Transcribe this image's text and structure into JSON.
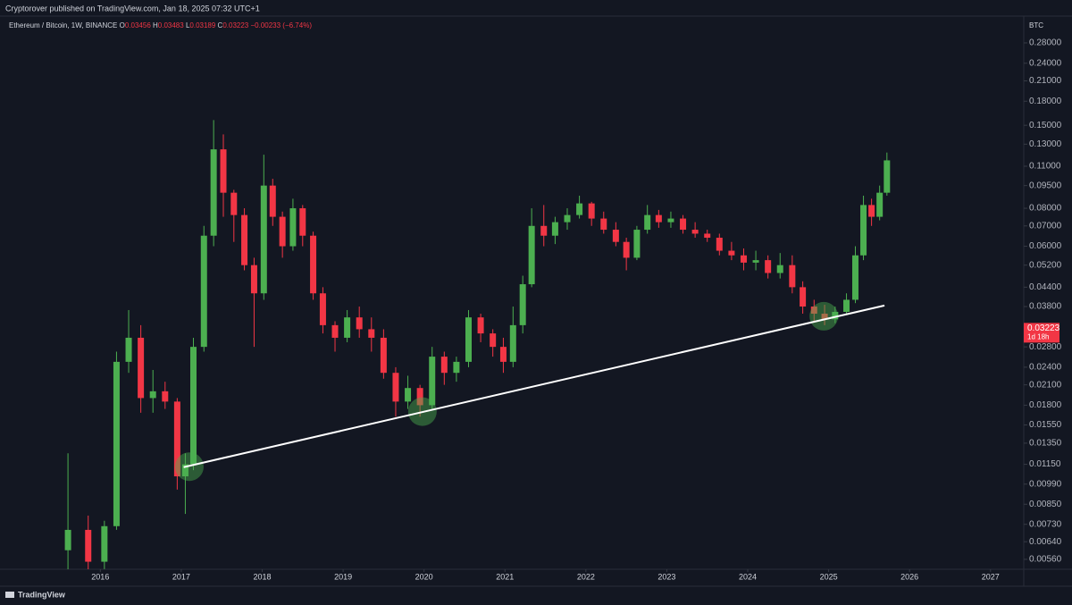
{
  "header": "Cryptorover published on TradingView.com, Jan 18, 2025 07:32 UTC+1",
  "brand": "TradingView",
  "chart_data": {
    "type": "candlestick",
    "symbol": "Ethereum / Bitcoin, 1W, BINANCE",
    "ohlc_legend": [
      {
        "key": "O",
        "text": "0.03456"
      },
      {
        "key": "H",
        "text": "0.03483"
      },
      {
        "key": "L",
        "text": "0.03189"
      },
      {
        "key": "C",
        "text": "0.03223"
      }
    ],
    "change": "−0.00233 (−6.74%)",
    "currency": "BTC",
    "last_price": 0.03223,
    "countdown": "1d 18h",
    "log_scale": true,
    "up_color": "#4caf50",
    "down_color": "#f23645",
    "xlim": [
      2014.76,
      2027.4
    ],
    "xticks": [
      2016,
      2017,
      2018,
      2019,
      2020,
      2021,
      2022,
      2023,
      2024,
      2025,
      2026,
      2027
    ],
    "ylim": [
      0.00523,
      0.343
    ],
    "yticks": [
      {
        "value": 0.28,
        "label": "0.28000"
      },
      {
        "value": 0.24,
        "label": "0.24000"
      },
      {
        "value": 0.21,
        "label": "0.21000"
      },
      {
        "value": 0.18,
        "label": "0.18000"
      },
      {
        "value": 0.15,
        "label": "0.15000"
      },
      {
        "value": 0.13,
        "label": "0.13000"
      },
      {
        "value": 0.11,
        "label": "0.11000"
      },
      {
        "value": 0.095,
        "label": "0.09500"
      },
      {
        "value": 0.08,
        "label": "0.08000"
      },
      {
        "value": 0.07,
        "label": "0.07000"
      },
      {
        "value": 0.06,
        "label": "0.06000"
      },
      {
        "value": 0.052,
        "label": "0.05200"
      },
      {
        "value": 0.044,
        "label": "0.04400"
      },
      {
        "value": 0.038,
        "label": "0.03800"
      },
      {
        "value": 0.028,
        "label": "0.02800"
      },
      {
        "value": 0.024,
        "label": "0.02400"
      },
      {
        "value": 0.021,
        "label": "0.02100"
      },
      {
        "value": 0.018,
        "label": "0.01800"
      },
      {
        "value": 0.0155,
        "label": "0.01550"
      },
      {
        "value": 0.0135,
        "label": "0.01350"
      },
      {
        "value": 0.0115,
        "label": "0.01150"
      },
      {
        "value": 0.0099,
        "label": "0.00990"
      },
      {
        "value": 0.0085,
        "label": "0.00850"
      },
      {
        "value": 0.0073,
        "label": "0.00730"
      },
      {
        "value": 0.0064,
        "label": "0.00640"
      },
      {
        "value": 0.0056,
        "label": "0.00560"
      }
    ],
    "x": [
      2015.6,
      2015.85,
      2016.05,
      2016.2,
      2016.35,
      2016.5,
      2016.65,
      2016.8,
      2016.95,
      2017.05,
      2017.15,
      2017.28,
      2017.4,
      2017.52,
      2017.65,
      2017.78,
      2017.9,
      2018.02,
      2018.13,
      2018.25,
      2018.38,
      2018.5,
      2018.63,
      2018.75,
      2018.9,
      2019.05,
      2019.2,
      2019.35,
      2019.5,
      2019.65,
      2019.8,
      2019.95,
      2020.1,
      2020.25,
      2020.4,
      2020.55,
      2020.7,
      2020.85,
      2020.98,
      2021.1,
      2021.22,
      2021.33,
      2021.48,
      2021.62,
      2021.77,
      2021.92,
      2022.07,
      2022.22,
      2022.37,
      2022.5,
      2022.63,
      2022.76,
      2022.9,
      2023.05,
      2023.2,
      2023.35,
      2023.5,
      2023.65,
      2023.8,
      2023.95,
      2024.1,
      2024.25,
      2024.4,
      2024.55,
      2024.68,
      2024.82,
      2024.95,
      2025.08,
      2025.22,
      2025.33,
      2025.43,
      2025.53,
      2025.63,
      2025.72
    ],
    "open": [
      0.006,
      0.007,
      0.0055,
      0.0072,
      0.025,
      0.03,
      0.019,
      0.02,
      0.0185,
      0.0105,
      0.0115,
      0.028,
      0.065,
      0.125,
      0.09,
      0.076,
      0.052,
      0.042,
      0.095,
      0.075,
      0.06,
      0.08,
      0.065,
      0.042,
      0.033,
      0.03,
      0.035,
      0.032,
      0.03,
      0.023,
      0.0185,
      0.0205,
      0.018,
      0.026,
      0.023,
      0.025,
      0.035,
      0.031,
      0.028,
      0.025,
      0.033,
      0.045,
      0.07,
      0.065,
      0.072,
      0.076,
      0.083,
      0.074,
      0.068,
      0.062,
      0.055,
      0.068,
      0.076,
      0.072,
      0.074,
      0.068,
      0.066,
      0.064,
      0.058,
      0.056,
      0.053,
      0.054,
      0.049,
      0.052,
      0.044,
      0.038,
      0.036,
      0.0345,
      0.0365,
      0.04,
      0.056,
      0.082,
      0.075,
      0.09
    ],
    "high": [
      0.0125,
      0.0078,
      0.0075,
      0.027,
      0.037,
      0.033,
      0.0235,
      0.0215,
      0.019,
      0.0125,
      0.03,
      0.07,
      0.156,
      0.14,
      0.092,
      0.08,
      0.055,
      0.12,
      0.1,
      0.078,
      0.086,
      0.082,
      0.067,
      0.044,
      0.034,
      0.037,
      0.038,
      0.035,
      0.032,
      0.024,
      0.0225,
      0.021,
      0.028,
      0.027,
      0.026,
      0.037,
      0.036,
      0.032,
      0.03,
      0.038,
      0.048,
      0.08,
      0.082,
      0.075,
      0.08,
      0.088,
      0.084,
      0.078,
      0.072,
      0.064,
      0.07,
      0.082,
      0.079,
      0.078,
      0.076,
      0.072,
      0.068,
      0.066,
      0.062,
      0.059,
      0.058,
      0.056,
      0.057,
      0.056,
      0.046,
      0.04,
      0.0385,
      0.038,
      0.042,
      0.06,
      0.088,
      0.086,
      0.095,
      0.122
    ],
    "low": [
      0.005,
      0.005,
      0.0052,
      0.007,
      0.023,
      0.017,
      0.017,
      0.0175,
      0.0095,
      0.0079,
      0.011,
      0.027,
      0.06,
      0.075,
      0.062,
      0.05,
      0.028,
      0.04,
      0.07,
      0.055,
      0.058,
      0.06,
      0.04,
      0.031,
      0.027,
      0.029,
      0.03,
      0.027,
      0.022,
      0.0165,
      0.0175,
      0.0165,
      0.0175,
      0.021,
      0.0215,
      0.024,
      0.029,
      0.026,
      0.023,
      0.024,
      0.031,
      0.044,
      0.06,
      0.061,
      0.068,
      0.074,
      0.07,
      0.066,
      0.06,
      0.05,
      0.054,
      0.066,
      0.069,
      0.069,
      0.066,
      0.064,
      0.062,
      0.056,
      0.054,
      0.05,
      0.05,
      0.047,
      0.047,
      0.042,
      0.036,
      0.034,
      0.033,
      0.0335,
      0.036,
      0.039,
      0.054,
      0.07,
      0.073,
      0.088
    ],
    "close": [
      0.007,
      0.0055,
      0.0072,
      0.025,
      0.03,
      0.019,
      0.02,
      0.0185,
      0.0105,
      0.0115,
      0.028,
      0.065,
      0.125,
      0.09,
      0.076,
      0.052,
      0.042,
      0.095,
      0.075,
      0.06,
      0.08,
      0.065,
      0.042,
      0.033,
      0.03,
      0.035,
      0.032,
      0.03,
      0.023,
      0.0185,
      0.0205,
      0.018,
      0.026,
      0.023,
      0.025,
      0.035,
      0.031,
      0.028,
      0.025,
      0.033,
      0.045,
      0.07,
      0.065,
      0.072,
      0.076,
      0.083,
      0.074,
      0.068,
      0.062,
      0.055,
      0.068,
      0.076,
      0.072,
      0.074,
      0.068,
      0.066,
      0.064,
      0.058,
      0.056,
      0.053,
      0.054,
      0.049,
      0.052,
      0.044,
      0.038,
      0.036,
      0.0345,
      0.0365,
      0.04,
      0.056,
      0.082,
      0.075,
      0.09,
      0.115
    ],
    "trendline": {
      "x": [
        2017.03,
        2025.69
      ],
      "y": [
        0.01126,
        0.0383
      ],
      "color": "#ffffff"
    },
    "highlights": {
      "x": [
        2017.1,
        2019.98,
        2024.94
      ],
      "y": [
        0.0113,
        0.01714,
        0.0353
      ],
      "color": "#4caf50"
    }
  }
}
